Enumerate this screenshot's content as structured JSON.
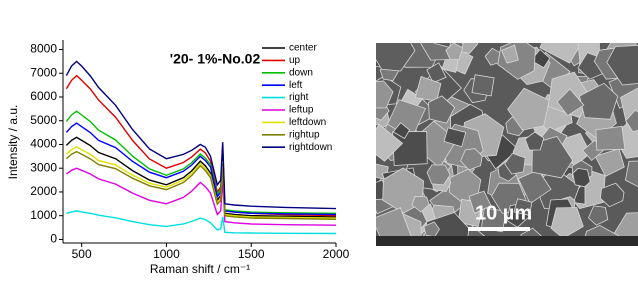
{
  "chart_data": {
    "type": "line",
    "title": "'20-  1%-No.02",
    "x_label": "Raman shift / cm⁻¹",
    "y_label": "Intensity / a.u.",
    "x": [
      410,
      440,
      470,
      500,
      550,
      600,
      700,
      800,
      900,
      1000,
      1100,
      1150,
      1200,
      1230,
      1260,
      1300,
      1320,
      1332,
      1345,
      1400,
      1500,
      1700,
      2000
    ],
    "series": [
      {
        "name": "center",
        "color": "#000000",
        "values": [
          3960,
          4170,
          4300,
          4170,
          3960,
          3660,
          3400,
          2900,
          2500,
          2300,
          2600,
          2900,
          3300,
          3100,
          2800,
          1650,
          1850,
          3400,
          1100,
          1050,
          1000,
          980,
          950
        ]
      },
      {
        "name": "up",
        "color": "#e00000",
        "values": [
          6350,
          6700,
          6900,
          6700,
          6350,
          5870,
          5150,
          4170,
          3390,
          3000,
          3240,
          3480,
          3800,
          3640,
          3300,
          2000,
          2200,
          3900,
          1200,
          1150,
          1100,
          1050,
          1000
        ]
      },
      {
        "name": "down",
        "color": "#00c000",
        "values": [
          4970,
          5240,
          5400,
          5240,
          4970,
          4600,
          4190,
          3510,
          2970,
          2700,
          2970,
          3240,
          3600,
          3420,
          3150,
          1900,
          2100,
          3700,
          1250,
          1200,
          1150,
          1120,
          1100
        ]
      },
      {
        "name": "left",
        "color": "#0000ff",
        "values": [
          4510,
          4750,
          4900,
          4750,
          4510,
          4170,
          3870,
          3290,
          2830,
          2600,
          2870,
          3140,
          3500,
          3320,
          3050,
          1800,
          2000,
          3600,
          1200,
          1150,
          1100,
          1080,
          1050
        ]
      },
      {
        "name": "right",
        "color": "#00e0e0",
        "values": [
          1100,
          1160,
          1200,
          1160,
          1100,
          1020,
          910,
          750,
          620,
          550,
          650,
          760,
          900,
          830,
          700,
          400,
          450,
          950,
          300,
          280,
          270,
          260,
          250
        ]
      },
      {
        "name": "leftup",
        "color": "#e000e0",
        "values": [
          2760,
          2910,
          3000,
          2910,
          2760,
          2550,
          2330,
          1950,
          1650,
          1500,
          1770,
          2040,
          2400,
          2220,
          1950,
          1050,
          1200,
          2500,
          750,
          700,
          650,
          620,
          600
        ]
      },
      {
        "name": "leftdown",
        "color": "#e0e000",
        "values": [
          3590,
          3780,
          3900,
          3780,
          3590,
          3320,
          3140,
          2710,
          2370,
          2200,
          2500,
          2800,
          3200,
          3000,
          2700,
          1550,
          1750,
          3300,
          1050,
          1000,
          950,
          930,
          900
        ]
      },
      {
        "name": "rightup",
        "color": "#808000",
        "values": [
          3400,
          3590,
          3700,
          3590,
          3400,
          3150,
          2980,
          2580,
          2260,
          2100,
          2400,
          2700,
          3100,
          2900,
          2600,
          1480,
          1650,
          3200,
          1000,
          950,
          900,
          880,
          850
        ]
      },
      {
        "name": "rightdown",
        "color": "#000080",
        "values": [
          6900,
          7300,
          7500,
          7300,
          6900,
          6400,
          5650,
          4630,
          3810,
          3400,
          3580,
          3760,
          4000,
          3880,
          3500,
          2300,
          2500,
          4100,
          1500,
          1450,
          1400,
          1350,
          1300
        ]
      }
    ],
    "xlim": [
      390,
      2000
    ],
    "xticks": [
      500,
      1000,
      1500,
      2000
    ],
    "ylim": [
      -150,
      8400
    ],
    "yticks": [
      0,
      1000,
      2000,
      3000,
      4000,
      5000,
      6000,
      7000,
      8000
    ]
  },
  "image": {
    "scale_bar": "10 µm"
  }
}
